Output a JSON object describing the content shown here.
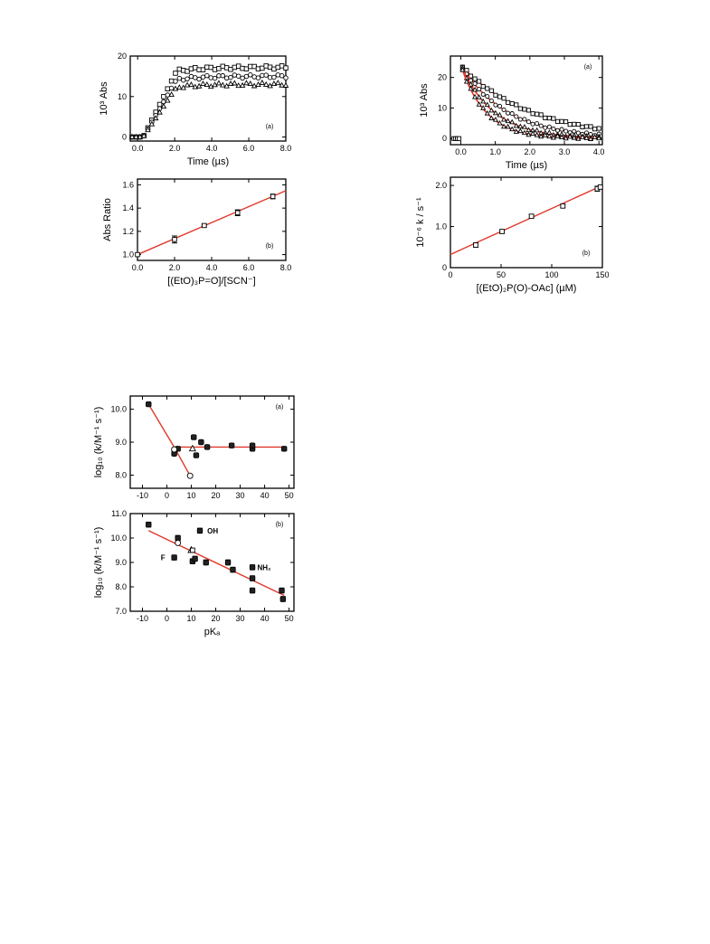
{
  "chart_data": [
    {
      "id": "fig1a",
      "type": "scatter",
      "xlabel": "Time (µs)",
      "ylabel": "10³ Abs",
      "panel": "(a)",
      "xlim": [
        -0.4,
        8.0
      ],
      "ylim": [
        -1,
        20
      ],
      "xticks": [
        "0.0",
        "2.0",
        "4.0",
        "6.0",
        "8.0"
      ],
      "xtick_values": [
        0,
        2,
        4,
        6,
        8
      ],
      "yticks": [
        "0",
        "10",
        "20"
      ],
      "ytick_values": [
        0,
        10,
        20
      ],
      "series": [
        {
          "marker": "square",
          "rise_end": 2.2,
          "plateau": 17.2,
          "npoints": 40
        },
        {
          "marker": "circle",
          "rise_end": 2.2,
          "plateau": 15.0,
          "npoints": 40
        },
        {
          "marker": "triangle",
          "rise_end": 2.2,
          "plateau": 13.0,
          "npoints": 40
        }
      ],
      "baseline_end": 0.3,
      "x_start": -0.3,
      "x_end": 8.0
    },
    {
      "id": "fig1b",
      "type": "scatter",
      "xlabel": "[(EtO)₃P=O]/[SCN⁻]",
      "ylabel": "Abs Ratio",
      "panel": "(b)",
      "xlim": [
        0,
        8.0
      ],
      "ylim": [
        0.95,
        1.65
      ],
      "xticks": [
        "0.0",
        "2.0",
        "4.0",
        "6.0",
        "8.0"
      ],
      "xtick_values": [
        0,
        2,
        4,
        6,
        8
      ],
      "yticks": [
        "1.0",
        "1.2",
        "1.4",
        "1.6"
      ],
      "ytick_values": [
        1.0,
        1.2,
        1.4,
        1.6
      ],
      "points": [
        {
          "x": 0,
          "y": 1.0,
          "err": 0
        },
        {
          "x": 2.0,
          "y": 1.13,
          "err": 0.03
        },
        {
          "x": 3.6,
          "y": 1.25,
          "err": 0.01
        },
        {
          "x": 5.4,
          "y": 1.36,
          "err": 0.025
        },
        {
          "x": 7.3,
          "y": 1.5,
          "err": 0.02
        }
      ],
      "fit": [
        [
          0,
          1.0
        ],
        [
          8.0,
          1.55
        ]
      ]
    },
    {
      "id": "fig2a",
      "type": "scatter",
      "xlabel": "Time (µs)",
      "ylabel": "10³ Abs",
      "panel": "(a)",
      "xlim": [
        -0.3,
        4.1
      ],
      "ylim": [
        -2,
        27
      ],
      "xticks": [
        "0.0",
        "1.0",
        "2.0",
        "3.0",
        "4.0"
      ],
      "xtick_values": [
        0,
        1,
        2,
        3,
        4
      ],
      "yticks": [
        "0",
        "10",
        "20"
      ],
      "ytick_values": [
        0,
        10,
        20
      ],
      "initial": 24,
      "decay_rates": [
        0.5,
        0.75,
        1.05,
        1.4
      ],
      "pre_points": [
        [
          -0.2,
          0
        ],
        [
          -0.15,
          0
        ],
        [
          -0.1,
          0
        ],
        [
          -0.05,
          0
        ]
      ]
    },
    {
      "id": "fig2b",
      "type": "scatter",
      "xlabel": "[(EtO)₂P(O)-OAc] (µM)",
      "ylabel": "10⁻⁶ k / s⁻¹",
      "panel": "(b)",
      "xlim": [
        0,
        150
      ],
      "ylim": [
        0,
        2.2
      ],
      "xticks": [
        "0",
        "50",
        "100",
        "150"
      ],
      "xtick_values": [
        0,
        50,
        100,
        150
      ],
      "yticks": [
        "0",
        "1.0",
        "2.0"
      ],
      "ytick_values": [
        0,
        1,
        2
      ],
      "points": [
        {
          "x": 25,
          "y": 0.55,
          "err": 0.05
        },
        {
          "x": 51,
          "y": 0.88,
          "err": 0.04
        },
        {
          "x": 80,
          "y": 1.25,
          "err": 0.04
        },
        {
          "x": 111,
          "y": 1.5,
          "err": 0.03
        },
        {
          "x": 145,
          "y": 1.92,
          "err": 0.06
        },
        {
          "x": 148,
          "y": 1.96,
          "err": 0.03
        }
      ],
      "fit": [
        [
          0,
          0.32
        ],
        [
          150,
          2.0
        ]
      ]
    },
    {
      "id": "fig3a",
      "type": "scatter",
      "xlabel": "",
      "ylabel": "log₁₀ (k/M⁻¹ s⁻¹)",
      "panel": "(a)",
      "xlim": [
        -15,
        52
      ],
      "ylim": [
        7.6,
        10.4
      ],
      "xticks": [
        "-10",
        "0",
        "10",
        "20",
        "30",
        "40",
        "50"
      ],
      "xtick_values": [
        -10,
        0,
        10,
        20,
        30,
        40,
        50
      ],
      "yticks": [
        "8.0",
        "9.0",
        "10.0"
      ],
      "ytick_values": [
        8,
        9,
        10
      ],
      "filled": [
        [
          -7.5,
          10.15
        ],
        [
          3,
          8.65
        ],
        [
          4.5,
          8.8
        ],
        [
          11,
          9.15
        ],
        [
          12,
          8.6
        ],
        [
          14,
          9.0
        ],
        [
          16.5,
          8.85
        ],
        [
          26.5,
          8.9
        ],
        [
          35,
          8.8
        ],
        [
          35,
          8.9
        ],
        [
          48,
          8.8
        ]
      ],
      "open_circles": [
        [
          3,
          8.78
        ],
        [
          9.5,
          7.98
        ]
      ],
      "open_triangles": [
        [
          10.5,
          8.8
        ]
      ],
      "fit_lines": [
        [
          [
            -7.5,
            10.15
          ],
          [
            3,
            8.85
          ]
        ],
        [
          [
            3,
            8.85
          ],
          [
            9.5,
            7.98
          ]
        ],
        [
          [
            3,
            8.85
          ],
          [
            48,
            8.85
          ]
        ]
      ]
    },
    {
      "id": "fig3b",
      "type": "scatter",
      "xlabel": "pKₐ",
      "ylabel": "log₁₀ (k/M⁻¹ s⁻¹)",
      "panel": "(b)",
      "xlim": [
        -15,
        52
      ],
      "ylim": [
        7.0,
        11.0
      ],
      "xticks": [
        "-10",
        "0",
        "10",
        "20",
        "30",
        "40",
        "50"
      ],
      "xtick_values": [
        -10,
        0,
        10,
        20,
        30,
        40,
        50
      ],
      "yticks": [
        "7.0",
        "8.0",
        "9.0",
        "10.0",
        "11.0"
      ],
      "ytick_values": [
        7,
        8,
        9,
        10,
        11
      ],
      "filled": [
        [
          -7.5,
          10.55
        ],
        [
          3,
          9.2
        ],
        [
          4.5,
          10.0
        ],
        [
          10.5,
          9.05
        ],
        [
          11.5,
          9.15
        ],
        [
          13.5,
          10.3
        ],
        [
          16,
          9.0
        ],
        [
          25,
          9.0
        ],
        [
          27,
          8.7
        ],
        [
          35,
          8.8
        ],
        [
          35,
          7.85
        ],
        [
          35,
          8.35
        ],
        [
          47,
          7.85
        ],
        [
          47.5,
          7.5
        ]
      ],
      "open_circles": [
        [
          4.5,
          9.8
        ]
      ],
      "open_triangles": [
        [
          10,
          9.5
        ]
      ],
      "open_squares": [
        [
          10.5,
          9.5
        ]
      ],
      "fit": [
        [
          -7.5,
          10.3
        ],
        [
          48,
          7.65
        ]
      ],
      "annotations": [
        {
          "text": "OH",
          "x": 16.5,
          "y": 10.3
        },
        {
          "text": "F",
          "x": -2.5,
          "y": 9.2
        },
        {
          "text": "NH₂",
          "x": 37,
          "y": 8.8
        }
      ]
    }
  ]
}
